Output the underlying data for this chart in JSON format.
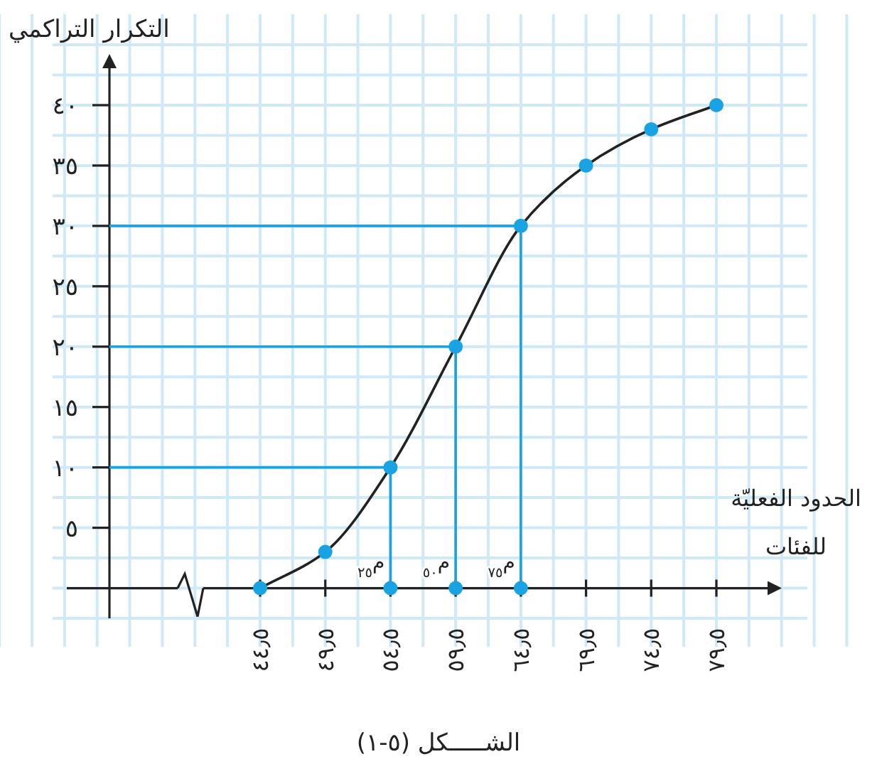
{
  "chart_data": {
    "type": "line",
    "xlabel": "الحدود الفعليّة للفئات",
    "ylabel": "التكرار التراكمي",
    "categories": [
      "٤٤٫٥",
      "٤٩٫٥",
      "٥٤٫٥",
      "٥٩٫٥",
      "٦٤٫٥",
      "٦٩٫٥",
      "٧٤٫٥",
      "٧٩٫٥"
    ],
    "series": [
      {
        "color": "#1aa3e2",
        "values": [
          0,
          3,
          10,
          20,
          30,
          35,
          38,
          40
        ]
      }
    ],
    "marker": "circle",
    "ylim": [
      -2.5,
      44
    ],
    "yticks": [
      {
        "value": 5,
        "label": "٥"
      },
      {
        "value": 10,
        "label": "١٠"
      },
      {
        "value": 15,
        "label": "١٥"
      },
      {
        "value": 20,
        "label": "٢٠"
      },
      {
        "value": 25,
        "label": "٢٥"
      },
      {
        "value": 30,
        "label": "٣٠"
      },
      {
        "value": 35,
        "label": "٣٥"
      },
      {
        "value": 40,
        "label": "٤٠"
      }
    ],
    "grid": true,
    "annotations": [
      {
        "text": "م$_{٢٥}$",
        "x": "٥٤٫٥",
        "y": 0
      },
      {
        "text": "م$_{٥٠}$",
        "x": "٥٩٫٥",
        "y": 0
      },
      {
        "text": "م$_{٧٥}$",
        "x": "٦٤٫٥",
        "y": 0
      },
      "الشـــــكل (٥-١)"
    ]
  }
}
